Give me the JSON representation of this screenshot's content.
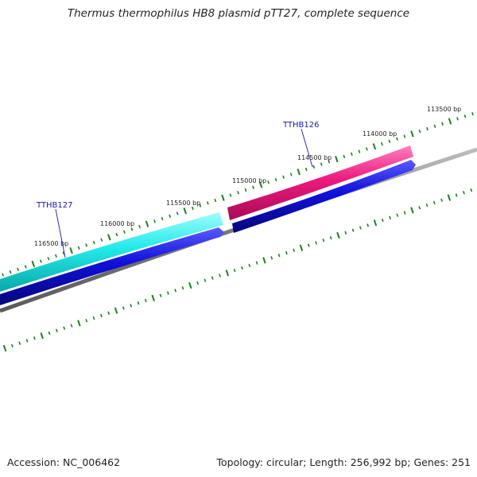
{
  "title": "Thermus thermophilus HB8 plasmid pTT27, complete sequence",
  "footer": {
    "accession": "Accession: NC_006462",
    "summary": "Topology: circular; Length: 256,992 bp; Genes: 251"
  },
  "ruler": {
    "labels": [
      "113500 bp",
      "114000 bp",
      "114500 bp",
      "115000 bp",
      "115500 bp",
      "116000 bp",
      "116500 bp"
    ],
    "tick_color": "#1e7f1e"
  },
  "genes": [
    {
      "name": "TTHB126",
      "color": "#e8157a",
      "strand": "forward"
    },
    {
      "name": "TTHB127",
      "color": "#19e6e6",
      "strand": "forward"
    }
  ],
  "cds_color": "#1010d8",
  "backbone_color": "#808080"
}
